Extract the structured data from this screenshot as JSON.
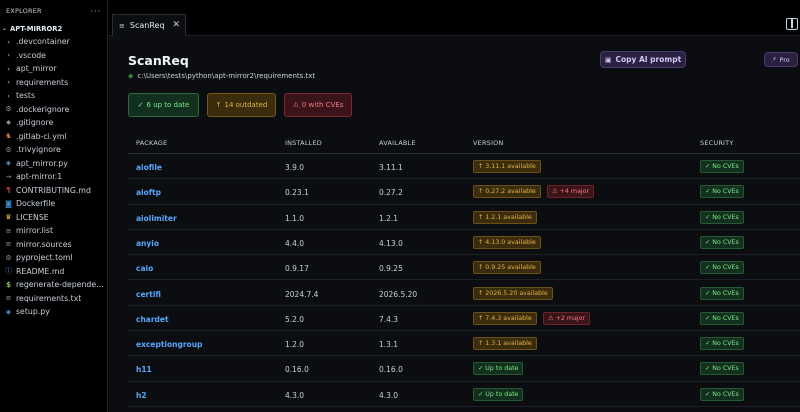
{
  "sidebar": {
    "header": "EXPLORER",
    "more": "···",
    "project": "APT-MIRROR2",
    "items": [
      {
        "icon": "folder-chevron-icon",
        "glyph": "›",
        "cls": "folder",
        "label": ".devcontainer"
      },
      {
        "icon": "folder-chevron-icon",
        "glyph": "›",
        "cls": "folder",
        "label": ".vscode"
      },
      {
        "icon": "folder-chevron-icon",
        "glyph": "›",
        "cls": "folder",
        "label": "apt_mirror"
      },
      {
        "icon": "folder-chevron-icon",
        "glyph": "›",
        "cls": "folder",
        "label": "requirements"
      },
      {
        "icon": "folder-chevron-icon",
        "glyph": "›",
        "cls": "folder",
        "label": "tests"
      },
      {
        "icon": "gear-icon",
        "glyph": "⚙",
        "cls": "gear",
        "label": ".dockerignore"
      },
      {
        "icon": "diamond-icon",
        "glyph": "◆",
        "cls": "diamond",
        "label": ".gitignore"
      },
      {
        "icon": "gitlab-icon",
        "glyph": "♞",
        "cls": "fox",
        "label": ".gitlab-ci.yml"
      },
      {
        "icon": "gear-icon",
        "glyph": "⚙",
        "cls": "gear",
        "label": ".trivyignore"
      },
      {
        "icon": "python-icon",
        "glyph": "◈",
        "cls": "py",
        "label": "apt_mirror.py"
      },
      {
        "icon": "arrow-icon",
        "glyph": "→",
        "cls": "arrow",
        "label": "apt-mirror.1"
      },
      {
        "icon": "markdown-icon",
        "glyph": "¶",
        "cls": "md",
        "label": "CONTRIBUTING.md"
      },
      {
        "icon": "docker-icon",
        "glyph": "◙",
        "cls": "whale",
        "label": "Dockerfile"
      },
      {
        "icon": "license-icon",
        "glyph": "♛",
        "cls": "lic",
        "label": "LICENSE"
      },
      {
        "icon": "list-icon",
        "glyph": "≡",
        "cls": "list",
        "label": "mirror.list"
      },
      {
        "icon": "list-icon",
        "glyph": "≡",
        "cls": "list",
        "label": "mirror.sources"
      },
      {
        "icon": "toml-icon",
        "glyph": "⚙",
        "cls": "toml",
        "label": "pyproject.toml"
      },
      {
        "icon": "info-icon",
        "glyph": "ⓘ",
        "cls": "info",
        "label": "README.md"
      },
      {
        "icon": "dollar-icon",
        "glyph": "$",
        "cls": "dollar",
        "label": "regenerate-dependencie..."
      },
      {
        "icon": "list-icon",
        "glyph": "≡",
        "cls": "list",
        "label": "requirements.txt"
      },
      {
        "icon": "python-icon",
        "glyph": "◈",
        "cls": "py",
        "label": "setup.py"
      }
    ]
  },
  "tab": {
    "label": "ScanReq",
    "close": "✕"
  },
  "header": {
    "title": "ScanReq",
    "path": "c:\\Users\\tests\\python\\apt-mirror2\\requirements.txt",
    "copy_button": "Copy AI prompt",
    "pro_button": "Pro"
  },
  "stats": {
    "up_to_date": "6 up to date",
    "outdated": "14 outdated",
    "cves": "0 with CVEs"
  },
  "table": {
    "columns": [
      "PACKAGE",
      "INSTALLED",
      "AVAILABLE",
      "VERSION",
      "SECURITY"
    ],
    "rows": [
      {
        "package": "aiofile",
        "installed": "3.9.0",
        "available": "3.11.1",
        "version": "↑ 3.11.1 available",
        "status": "outdated",
        "major": "",
        "security": "✓ No CVEs"
      },
      {
        "package": "aioftp",
        "installed": "0.23.1",
        "available": "0.27.2",
        "version": "↑ 0.27.2 available",
        "status": "outdated",
        "major": "⚠ +4 major",
        "security": "✓ No CVEs"
      },
      {
        "package": "aiolimiter",
        "installed": "1.1.0",
        "available": "1.2.1",
        "version": "↑ 1.2.1 available",
        "status": "outdated",
        "major": "",
        "security": "✓ No CVEs"
      },
      {
        "package": "anyio",
        "installed": "4.4.0",
        "available": "4.13.0",
        "version": "↑ 4.13.0 available",
        "status": "outdated",
        "major": "",
        "security": "✓ No CVEs"
      },
      {
        "package": "caio",
        "installed": "0.9.17",
        "available": "0.9.25",
        "version": "↑ 0.9.25 available",
        "status": "outdated",
        "major": "",
        "security": "✓ No CVEs"
      },
      {
        "package": "certifi",
        "installed": "2024.7.4",
        "available": "2026.5.20",
        "version": "↑ 2026.5.20 available",
        "status": "outdated",
        "major": "",
        "security": "✓ No CVEs"
      },
      {
        "package": "chardet",
        "installed": "5.2.0",
        "available": "7.4.3",
        "version": "↑ 7.4.3 available",
        "status": "outdated",
        "major": "⚠ +2 major",
        "security": "✓ No CVEs"
      },
      {
        "package": "exceptiongroup",
        "installed": "1.2.0",
        "available": "1.3.1",
        "version": "↑ 1.3.1 available",
        "status": "outdated",
        "major": "",
        "security": "✓ No CVEs"
      },
      {
        "package": "h11",
        "installed": "0.16.0",
        "available": "0.16.0",
        "version": "✓ Up to date",
        "status": "ok",
        "major": "",
        "security": "✓ No CVEs"
      },
      {
        "package": "h2",
        "installed": "4.3.0",
        "available": "4.3.0",
        "version": "✓ Up to date",
        "status": "ok",
        "major": "",
        "security": "✓ No CVEs"
      }
    ]
  },
  "colors": {
    "accent_link": "#58a6ff",
    "ok": "#7ee787",
    "warn": "#e3b341",
    "danger": "#f47c84",
    "ai_button": "#2a2140"
  }
}
